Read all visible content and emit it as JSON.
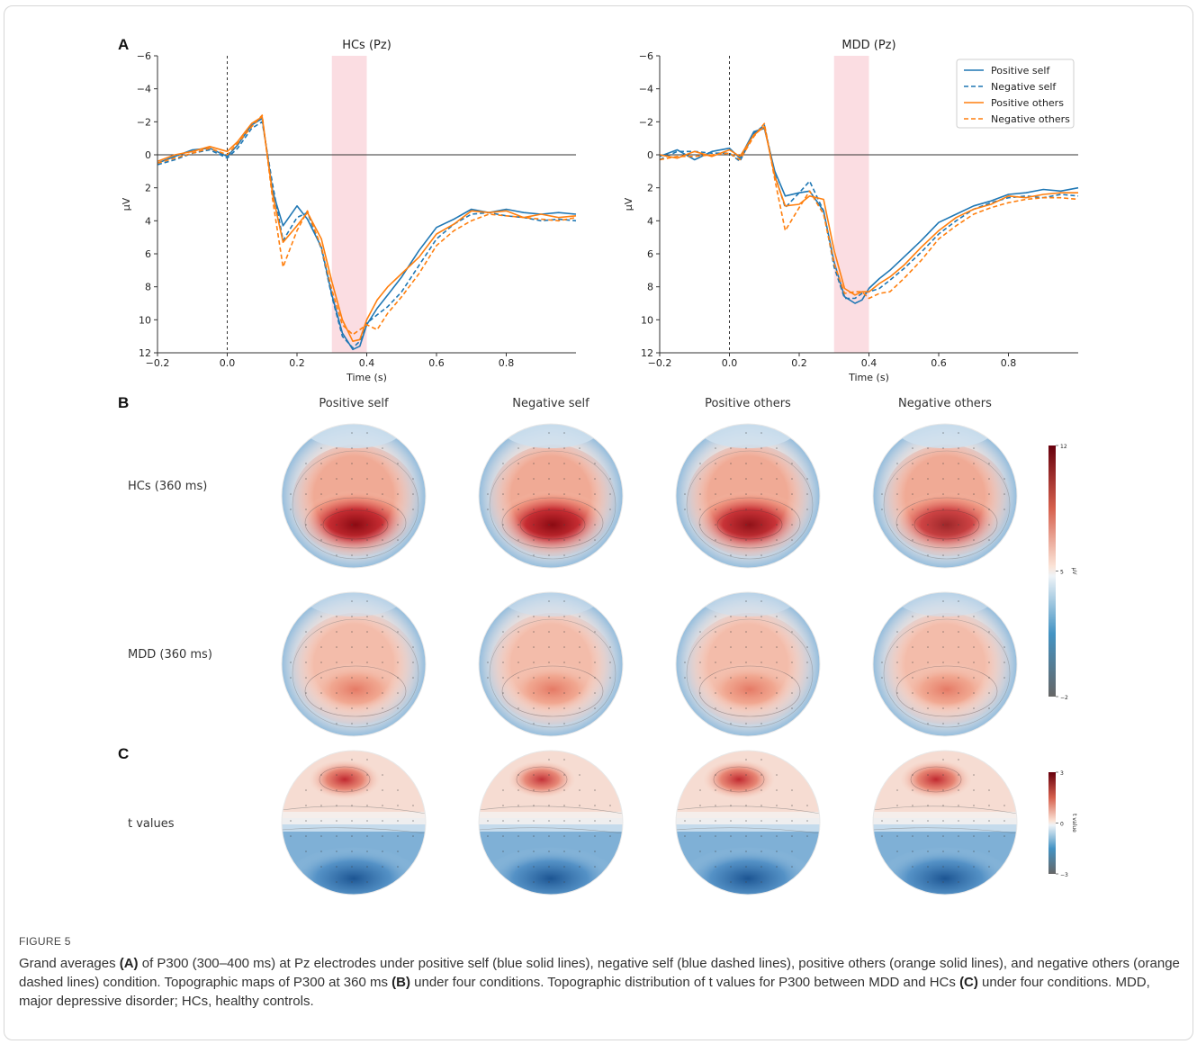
{
  "panel_letters": {
    "a": "A",
    "b": "B",
    "c": "C"
  },
  "chart_data": [
    {
      "type": "line",
      "title": "HCs (Pz)",
      "xlabel": "Time (s)",
      "ylabel": "µV",
      "xlim": [
        -0.2,
        1.0
      ],
      "ylim": [
        -6,
        12
      ],
      "y_inverted": true,
      "xticks": [
        "−0.2",
        "0.0",
        "0.2",
        "0.4",
        "0.6",
        "0.8"
      ],
      "yticks": [
        "−6",
        "−4",
        "−2",
        "0",
        "2",
        "4",
        "6",
        "8",
        "10",
        "12"
      ],
      "highlight_window": [
        0.3,
        0.4
      ],
      "stimulus_line": 0.0,
      "series": [
        {
          "name": "Positive self",
          "color": "#1f77b4",
          "dash": "solid",
          "x": [
            -0.2,
            -0.15,
            -0.1,
            -0.05,
            0.0,
            0.03,
            0.07,
            0.1,
            0.13,
            0.16,
            0.2,
            0.23,
            0.27,
            0.3,
            0.33,
            0.36,
            0.38,
            0.4,
            0.43,
            0.46,
            0.5,
            0.55,
            0.6,
            0.65,
            0.7,
            0.75,
            0.8,
            0.85,
            0.9,
            0.95,
            1.0
          ],
          "y": [
            0.5,
            0.1,
            -0.3,
            -0.4,
            0.1,
            -0.6,
            -1.8,
            -2.2,
            2.2,
            4.3,
            3.1,
            3.9,
            5.6,
            8.5,
            10.8,
            11.8,
            11.6,
            10.3,
            9.3,
            8.5,
            7.4,
            5.8,
            4.4,
            3.9,
            3.3,
            3.5,
            3.3,
            3.5,
            3.6,
            3.5,
            3.6
          ]
        },
        {
          "name": "Negative self",
          "color": "#1f77b4",
          "dash": "dashed",
          "x": [
            -0.2,
            -0.15,
            -0.1,
            -0.05,
            0.0,
            0.03,
            0.07,
            0.1,
            0.13,
            0.16,
            0.2,
            0.23,
            0.27,
            0.3,
            0.33,
            0.36,
            0.38,
            0.4,
            0.43,
            0.46,
            0.5,
            0.55,
            0.6,
            0.65,
            0.7,
            0.75,
            0.8,
            0.85,
            0.9,
            0.95,
            1.0
          ],
          "y": [
            0.6,
            0.3,
            -0.1,
            -0.3,
            0.2,
            -0.4,
            -1.6,
            -2.0,
            1.8,
            5.2,
            3.8,
            3.5,
            5.7,
            8.6,
            11.0,
            11.7,
            11.3,
            10.2,
            9.7,
            9.2,
            8.3,
            6.7,
            5.1,
            4.2,
            3.6,
            3.5,
            3.7,
            3.8,
            4.0,
            3.9,
            4.0
          ]
        },
        {
          "name": "Positive others",
          "color": "#ff7f0e",
          "dash": "solid",
          "x": [
            -0.2,
            -0.15,
            -0.1,
            -0.05,
            0.0,
            0.03,
            0.07,
            0.1,
            0.13,
            0.16,
            0.2,
            0.23,
            0.27,
            0.3,
            0.33,
            0.36,
            0.38,
            0.4,
            0.43,
            0.46,
            0.5,
            0.55,
            0.6,
            0.65,
            0.7,
            0.75,
            0.8,
            0.85,
            0.9,
            0.95,
            1.0
          ],
          "y": [
            0.4,
            0.0,
            -0.2,
            -0.5,
            -0.2,
            -0.8,
            -1.9,
            -2.3,
            2.4,
            5.3,
            4.3,
            3.5,
            5.1,
            7.7,
            10.0,
            11.3,
            11.2,
            10.0,
            8.8,
            8.0,
            7.2,
            6.2,
            4.8,
            4.2,
            3.4,
            3.5,
            3.4,
            3.8,
            3.6,
            3.8,
            3.7
          ]
        },
        {
          "name": "Negative others",
          "color": "#ff7f0e",
          "dash": "dashed",
          "x": [
            -0.2,
            -0.15,
            -0.1,
            -0.05,
            0.0,
            0.03,
            0.07,
            0.1,
            0.13,
            0.16,
            0.2,
            0.23,
            0.27,
            0.3,
            0.33,
            0.36,
            0.38,
            0.4,
            0.43,
            0.46,
            0.5,
            0.55,
            0.6,
            0.65,
            0.7,
            0.75,
            0.8,
            0.85,
            0.9,
            0.95,
            1.0
          ],
          "y": [
            0.5,
            0.2,
            -0.1,
            -0.4,
            0.0,
            -0.7,
            -1.7,
            -2.4,
            2.7,
            6.8,
            4.6,
            3.4,
            5.6,
            8.2,
            10.3,
            10.9,
            10.6,
            10.3,
            10.6,
            9.6,
            8.6,
            7.2,
            5.5,
            4.6,
            4.0,
            3.6,
            3.7,
            3.8,
            3.9,
            4.0,
            3.8
          ]
        }
      ]
    },
    {
      "type": "line",
      "title": "MDD (Pz)",
      "xlabel": "Time (s)",
      "ylabel": "µV",
      "xlim": [
        -0.2,
        1.0
      ],
      "ylim": [
        -6,
        12
      ],
      "y_inverted": true,
      "xticks": [
        "−0.2",
        "0.0",
        "0.2",
        "0.4",
        "0.6",
        "0.8"
      ],
      "yticks": [
        "−6",
        "−4",
        "−2",
        "0",
        "2",
        "4",
        "6",
        "8",
        "10",
        "12"
      ],
      "highlight_window": [
        0.3,
        0.4
      ],
      "stimulus_line": 0.0,
      "legend_position": "top-right",
      "series": [
        {
          "name": "Positive self",
          "color": "#1f77b4",
          "dash": "solid",
          "x": [
            -0.2,
            -0.15,
            -0.1,
            -0.05,
            0.0,
            0.03,
            0.07,
            0.1,
            0.13,
            0.16,
            0.2,
            0.23,
            0.27,
            0.3,
            0.33,
            0.36,
            0.38,
            0.4,
            0.43,
            0.46,
            0.5,
            0.55,
            0.6,
            0.65,
            0.7,
            0.75,
            0.8,
            0.85,
            0.9,
            0.95,
            1.0
          ],
          "y": [
            0.1,
            -0.3,
            0.3,
            -0.2,
            -0.4,
            0.2,
            -1.4,
            -1.6,
            1.0,
            2.5,
            2.3,
            2.2,
            3.4,
            6.5,
            8.6,
            9.0,
            8.8,
            8.1,
            7.5,
            7.0,
            6.2,
            5.2,
            4.1,
            3.6,
            3.1,
            2.8,
            2.4,
            2.3,
            2.1,
            2.2,
            2.0
          ]
        },
        {
          "name": "Negative self",
          "color": "#1f77b4",
          "dash": "dashed",
          "x": [
            -0.2,
            -0.15,
            -0.1,
            -0.05,
            0.0,
            0.03,
            0.07,
            0.1,
            0.13,
            0.16,
            0.2,
            0.23,
            0.27,
            0.3,
            0.33,
            0.36,
            0.38,
            0.4,
            0.43,
            0.46,
            0.5,
            0.55,
            0.6,
            0.65,
            0.7,
            0.75,
            0.8,
            0.85,
            0.9,
            0.95,
            1.0
          ],
          "y": [
            0.3,
            -0.2,
            -0.2,
            -0.1,
            -0.1,
            0.4,
            -1.3,
            -1.8,
            1.2,
            3.2,
            2.3,
            1.6,
            3.4,
            6.8,
            8.7,
            8.7,
            8.4,
            8.3,
            8.1,
            7.6,
            6.9,
            5.9,
            4.8,
            4.0,
            3.3,
            2.9,
            2.6,
            2.5,
            2.6,
            2.4,
            2.5
          ]
        },
        {
          "name": "Positive others",
          "color": "#ff7f0e",
          "dash": "solid",
          "x": [
            -0.2,
            -0.15,
            -0.1,
            -0.05,
            0.0,
            0.03,
            0.07,
            0.1,
            0.13,
            0.16,
            0.2,
            0.23,
            0.27,
            0.3,
            0.33,
            0.36,
            0.38,
            0.4,
            0.43,
            0.46,
            0.5,
            0.55,
            0.6,
            0.65,
            0.7,
            0.75,
            0.8,
            0.85,
            0.9,
            0.95,
            1.0
          ],
          "y": [
            0.0,
            0.2,
            -0.2,
            0.1,
            -0.3,
            0.1,
            -1.2,
            -1.7,
            1.3,
            3.1,
            3.0,
            2.5,
            2.7,
            5.8,
            8.1,
            8.5,
            8.3,
            8.3,
            7.8,
            7.4,
            6.7,
            5.6,
            4.6,
            3.8,
            3.3,
            3.0,
            2.5,
            2.6,
            2.4,
            2.3,
            2.3
          ]
        },
        {
          "name": "Negative others",
          "color": "#ff7f0e",
          "dash": "dashed",
          "x": [
            -0.2,
            -0.15,
            -0.1,
            -0.05,
            0.0,
            0.03,
            0.07,
            0.1,
            0.13,
            0.16,
            0.2,
            0.23,
            0.27,
            0.3,
            0.33,
            0.36,
            0.38,
            0.4,
            0.43,
            0.46,
            0.5,
            0.55,
            0.6,
            0.65,
            0.7,
            0.75,
            0.8,
            0.85,
            0.9,
            0.95,
            1.0
          ],
          "y": [
            0.3,
            0.1,
            0.1,
            0.0,
            -0.1,
            0.3,
            -1.1,
            -1.9,
            1.5,
            4.6,
            3.2,
            2.2,
            3.6,
            6.6,
            8.4,
            8.3,
            8.3,
            8.7,
            8.4,
            8.3,
            7.5,
            6.4,
            5.1,
            4.3,
            3.6,
            3.2,
            2.9,
            2.7,
            2.6,
            2.6,
            2.7
          ]
        }
      ]
    }
  ],
  "topo": {
    "conditions": [
      "Positive self",
      "Negative self",
      "Positive others",
      "Negative others"
    ],
    "rows": [
      {
        "label": "HCs (360 ms)",
        "intensity": [
          1.0,
          1.0,
          0.95,
          0.82
        ]
      },
      {
        "label": "MDD (360 ms)",
        "intensity": [
          0.45,
          0.42,
          0.45,
          0.45
        ]
      },
      {
        "label": "t values",
        "intensity": [
          1.0,
          0.8,
          1.0,
          1.0
        ]
      }
    ],
    "colorbar_uv": {
      "ticks": [
        "12",
        "5",
        "−2"
      ],
      "label": "µV"
    },
    "colorbar_t": {
      "ticks": [
        "3",
        "0",
        "−3"
      ],
      "label": "t value"
    },
    "colors": {
      "hot": "#a50f15",
      "mid": "#f7f7f7",
      "cold": "#2166ac",
      "bg_cold": "#d6e6f2"
    }
  },
  "caption": {
    "figure_label": "FIGURE 5",
    "segments": [
      {
        "text": "Grand averages ",
        "bold": false
      },
      {
        "text": "(A)",
        "bold": true
      },
      {
        "text": " of P300 (300–400 ms) at Pz electrodes under positive self (blue solid lines), negative self (blue dashed lines), positive others (orange solid lines), and negative others (orange dashed lines) condition. Topographic maps of P300 at 360 ms ",
        "bold": false
      },
      {
        "text": "(B)",
        "bold": true
      },
      {
        "text": " under four conditions. Topographic distribution of t values for P300 between MDD and HCs ",
        "bold": false
      },
      {
        "text": "(C)",
        "bold": true
      },
      {
        "text": " under four conditions. MDD, major depressive disorder; HCs, healthy controls.",
        "bold": false
      }
    ]
  }
}
